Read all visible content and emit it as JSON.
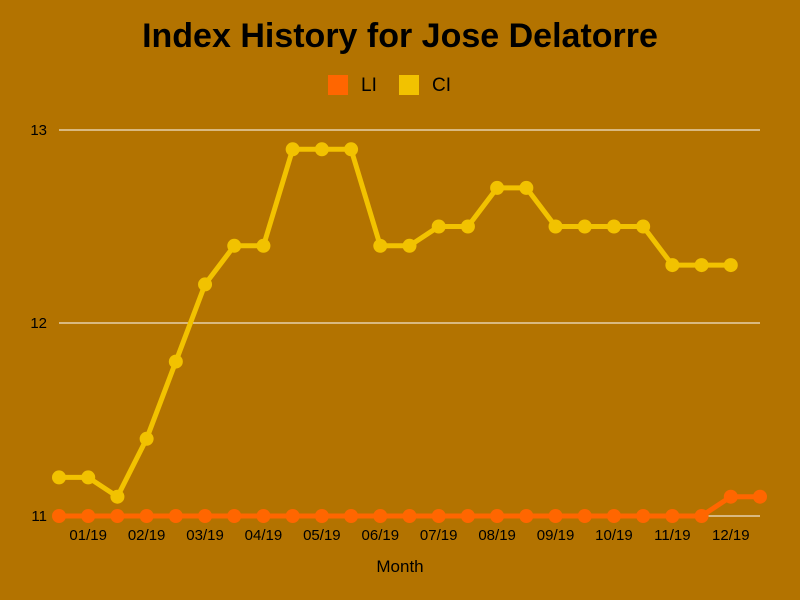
{
  "colors": {
    "background": "#b37300",
    "grid": "#ffffff",
    "li": "#ff6600",
    "ci": "#f2c200"
  },
  "chart_data": {
    "type": "line",
    "title": "Index History for Jose Delatorre",
    "xlabel": "Month",
    "ylabel": "",
    "ylim": [
      11,
      13
    ],
    "yticks": [
      "11",
      "12",
      "13"
    ],
    "xticks": [
      "01/19",
      "02/19",
      "03/19",
      "04/19",
      "05/19",
      "06/19",
      "07/19",
      "08/19",
      "09/19",
      "10/19",
      "11/19",
      "12/19"
    ],
    "grid": true,
    "legend_position": "top-center",
    "series": [
      {
        "name": "LI",
        "values": [
          11,
          11,
          11,
          11,
          11,
          11,
          11,
          11,
          11,
          11,
          11,
          11,
          11,
          11,
          11,
          11,
          11,
          11,
          11,
          11,
          11,
          11,
          11,
          11.1,
          11.1
        ]
      },
      {
        "name": "CI",
        "values": [
          11.2,
          11.2,
          11.1,
          11.4,
          11.8,
          12.2,
          12.4,
          12.4,
          12.9,
          12.9,
          12.9,
          12.4,
          12.4,
          12.5,
          12.5,
          12.7,
          12.7,
          12.5,
          12.5,
          12.5,
          12.5,
          12.3,
          12.3,
          12.3
        ]
      }
    ]
  }
}
